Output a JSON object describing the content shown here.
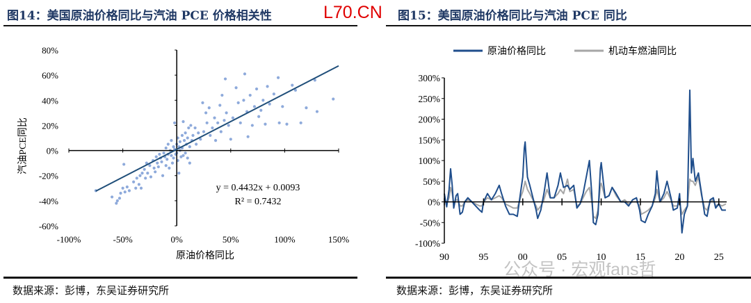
{
  "left": {
    "title": "图14：美国原油价格同比与汽油 PCE 价格相关性",
    "source": "数据来源：彭博，东吴证券研究所"
  },
  "right": {
    "title": "图15：美国原油价格同比与汽油 PCE 同比",
    "source": "数据来源：彭博，东吴证券研究所"
  },
  "stamp": "L70.CN",
  "watermark": "公众号 · 宏观fans哲",
  "chart_data": [
    {
      "type": "scatter",
      "xlabel": "原油价格同比",
      "ylabel": "汽油PCE同比",
      "xlim": [
        -100,
        150
      ],
      "ylim": [
        -60,
        80
      ],
      "xticks": [
        "-100%",
        "-50%",
        "0%",
        "50%",
        "100%",
        "150%"
      ],
      "yticks": [
        "80%",
        "60%",
        "40%",
        "20%",
        "0%",
        "-20%",
        "-40%",
        "-60%"
      ],
      "equation": "y = 0.4432x + 0.0093",
      "r2": "R² = 0.7432",
      "trend": {
        "slope": 0.4432,
        "intercept": 0.93
      },
      "color": "#8eaadb",
      "line_color": "#1f4e79",
      "points": [
        [
          -75,
          -32
        ],
        [
          -60,
          -37
        ],
        [
          -56,
          -42
        ],
        [
          -55,
          -40
        ],
        [
          -53,
          -38
        ],
        [
          -52,
          -34
        ],
        [
          -50,
          -30
        ],
        [
          -49,
          -11
        ],
        [
          -48,
          -33
        ],
        [
          -46,
          -29
        ],
        [
          -44,
          -32
        ],
        [
          -40,
          -25
        ],
        [
          -38,
          -30
        ],
        [
          -37,
          -22
        ],
        [
          -35,
          -27
        ],
        [
          -34,
          -20
        ],
        [
          -33,
          -30
        ],
        [
          -32,
          -18
        ],
        [
          -30,
          -15
        ],
        [
          -29,
          -22
        ],
        [
          -28,
          -10
        ],
        [
          -27,
          -18
        ],
        [
          -25,
          -12
        ],
        [
          -24,
          -21
        ],
        [
          -22,
          -8
        ],
        [
          -21,
          -14
        ],
        [
          -20,
          -17
        ],
        [
          -19,
          -5
        ],
        [
          -18,
          -10
        ],
        [
          -17,
          -13
        ],
        [
          -16,
          -3
        ],
        [
          -15,
          -6
        ],
        [
          -14,
          -9
        ],
        [
          -13,
          -20
        ],
        [
          -12,
          -2
        ],
        [
          -11,
          -5
        ],
        [
          -10,
          2
        ],
        [
          -10,
          -12
        ],
        [
          -9,
          -7
        ],
        [
          -8,
          5
        ],
        [
          -8,
          -3
        ],
        [
          -7,
          -14
        ],
        [
          -6,
          0
        ],
        [
          -5,
          8
        ],
        [
          -5,
          -4
        ],
        [
          -4,
          -10
        ],
        [
          -3,
          3
        ],
        [
          -3,
          -6
        ],
        [
          -2,
          22
        ],
        [
          -2,
          1
        ],
        [
          -1,
          -3
        ],
        [
          0,
          5
        ],
        [
          0,
          -2
        ],
        [
          1,
          10
        ],
        [
          1,
          -8
        ],
        [
          2,
          3
        ],
        [
          2,
          -18
        ],
        [
          3,
          0
        ],
        [
          3,
          7
        ],
        [
          4,
          -5
        ],
        [
          5,
          12
        ],
        [
          5,
          2
        ],
        [
          6,
          -4
        ],
        [
          6,
          23
        ],
        [
          7,
          8
        ],
        [
          8,
          14
        ],
        [
          8,
          -2
        ],
        [
          9,
          5
        ],
        [
          10,
          10
        ],
        [
          10,
          -6
        ],
        [
          11,
          18
        ],
        [
          12,
          3
        ],
        [
          12,
          -10
        ],
        [
          13,
          20
        ],
        [
          14,
          8
        ],
        [
          15,
          12
        ],
        [
          17,
          18
        ],
        [
          18,
          5
        ],
        [
          20,
          14
        ],
        [
          22,
          9
        ],
        [
          24,
          38
        ],
        [
          25,
          15
        ],
        [
          27,
          30
        ],
        [
          28,
          22
        ],
        [
          30,
          34
        ],
        [
          31,
          12
        ],
        [
          33,
          18
        ],
        [
          35,
          26
        ],
        [
          36,
          8
        ],
        [
          38,
          22
        ],
        [
          40,
          36
        ],
        [
          41,
          15
        ],
        [
          42,
          44
        ],
        [
          44,
          24
        ],
        [
          45,
          57
        ],
        [
          46,
          30
        ],
        [
          48,
          20
        ],
        [
          50,
          9
        ],
        [
          52,
          26
        ],
        [
          55,
          50
        ],
        [
          57,
          38
        ],
        [
          59,
          22
        ],
        [
          62,
          40
        ],
        [
          63,
          61
        ],
        [
          65,
          31
        ],
        [
          66,
          11
        ],
        [
          68,
          44
        ],
        [
          70,
          20
        ],
        [
          72,
          35
        ],
        [
          74,
          49
        ],
        [
          76,
          27
        ],
        [
          78,
          32
        ],
        [
          80,
          40
        ],
        [
          82,
          21
        ],
        [
          84,
          51
        ],
        [
          86,
          37
        ],
        [
          90,
          45
        ],
        [
          94,
          58
        ],
        [
          95,
          22
        ],
        [
          98,
          35
        ],
        [
          102,
          21
        ],
        [
          107,
          52
        ],
        [
          110,
          48
        ],
        [
          115,
          22
        ],
        [
          120,
          34
        ],
        [
          128,
          56
        ],
        [
          130,
          31
        ],
        [
          145,
          41
        ]
      ]
    },
    {
      "type": "line",
      "xlim": [
        1990,
        2026
      ],
      "ylim": [
        -100,
        300
      ],
      "xticks": [
        "90",
        "95",
        "00",
        "05",
        "10",
        "15",
        "20",
        "25"
      ],
      "yticks": [
        "300%",
        "250%",
        "200%",
        "150%",
        "100%",
        "50%",
        "0%",
        "-50%",
        "-100%"
      ],
      "series": [
        {
          "name": "原油价格同比",
          "color": "#1f4e8c"
        },
        {
          "name": "机动车燃油同比",
          "color": "#a6a6a6"
        }
      ],
      "points": [
        [
          1990.0,
          20,
          10
        ],
        [
          1990.3,
          -12,
          -5
        ],
        [
          1990.6,
          30,
          10
        ],
        [
          1990.8,
          80,
          35
        ],
        [
          1991.0,
          40,
          20
        ],
        [
          1991.2,
          -15,
          -5
        ],
        [
          1991.5,
          15,
          5
        ],
        [
          1991.7,
          20,
          5
        ],
        [
          1992.0,
          -30,
          -10
        ],
        [
          1992.3,
          -25,
          -10
        ],
        [
          1992.6,
          0,
          0
        ],
        [
          1993.0,
          10,
          5
        ],
        [
          1993.5,
          0,
          0
        ],
        [
          1994.0,
          -10,
          -5
        ],
        [
          1994.5,
          -20,
          -10
        ],
        [
          1994.8,
          -25,
          -10
        ],
        [
          1995.0,
          0,
          0
        ],
        [
          1995.5,
          20,
          10
        ],
        [
          1996.0,
          5,
          5
        ],
        [
          1996.5,
          20,
          10
        ],
        [
          1997.0,
          40,
          15
        ],
        [
          1997.3,
          20,
          10
        ],
        [
          1997.8,
          -10,
          -5
        ],
        [
          1998.3,
          -30,
          -10
        ],
        [
          1998.8,
          -30,
          -15
        ],
        [
          1999.3,
          -35,
          -15
        ],
        [
          1999.7,
          20,
          10
        ],
        [
          2000.0,
          60,
          25
        ],
        [
          2000.2,
          130,
          40
        ],
        [
          2000.3,
          145,
          50
        ],
        [
          2000.6,
          60,
          30
        ],
        [
          2000.9,
          40,
          20
        ],
        [
          2001.3,
          10,
          5
        ],
        [
          2001.7,
          -20,
          -10
        ],
        [
          2001.9,
          -40,
          -20
        ],
        [
          2002.3,
          -20,
          -10
        ],
        [
          2002.7,
          20,
          5
        ],
        [
          2003.1,
          70,
          30
        ],
        [
          2003.5,
          10,
          10
        ],
        [
          2004.0,
          10,
          10
        ],
        [
          2004.5,
          40,
          20
        ],
        [
          2004.8,
          70,
          30
        ],
        [
          2005.2,
          35,
          20
        ],
        [
          2005.7,
          40,
          55
        ],
        [
          2006.0,
          30,
          25
        ],
        [
          2006.5,
          40,
          30
        ],
        [
          2006.9,
          -15,
          -10
        ],
        [
          2007.3,
          -5,
          -5
        ],
        [
          2007.7,
          20,
          10
        ],
        [
          2008.1,
          60,
          25
        ],
        [
          2008.5,
          100,
          35
        ],
        [
          2008.8,
          20,
          0
        ],
        [
          2009.0,
          -50,
          -35
        ],
        [
          2009.3,
          -55,
          -40
        ],
        [
          2009.6,
          -30,
          -20
        ],
        [
          2009.9,
          80,
          40
        ],
        [
          2010.0,
          95,
          45
        ],
        [
          2010.5,
          10,
          10
        ],
        [
          2011.0,
          15,
          15
        ],
        [
          2011.4,
          35,
          35
        ],
        [
          2011.9,
          20,
          15
        ],
        [
          2012.5,
          0,
          0
        ],
        [
          2013.0,
          0,
          5
        ],
        [
          2013.5,
          -10,
          -5
        ],
        [
          2014.0,
          5,
          0
        ],
        [
          2014.5,
          10,
          0
        ],
        [
          2014.9,
          -20,
          -10
        ],
        [
          2015.1,
          -45,
          -30
        ],
        [
          2015.6,
          -50,
          -25
        ],
        [
          2016.0,
          -30,
          -20
        ],
        [
          2016.5,
          -10,
          -10
        ],
        [
          2016.9,
          20,
          10
        ],
        [
          2017.1,
          75,
          30
        ],
        [
          2017.5,
          0,
          0
        ],
        [
          2018.0,
          20,
          10
        ],
        [
          2018.4,
          50,
          25
        ],
        [
          2018.9,
          10,
          5
        ],
        [
          2019.2,
          -20,
          -10
        ],
        [
          2019.7,
          -15,
          -10
        ],
        [
          2020.0,
          20,
          0
        ],
        [
          2020.3,
          -75,
          -30
        ],
        [
          2020.6,
          -30,
          -20
        ],
        [
          2021.0,
          -10,
          -10
        ],
        [
          2021.3,
          270,
          55
        ],
        [
          2021.5,
          70,
          50
        ],
        [
          2021.7,
          105,
          50
        ],
        [
          2022.0,
          50,
          40
        ],
        [
          2022.4,
          70,
          60
        ],
        [
          2022.8,
          20,
          15
        ],
        [
          2023.2,
          -30,
          -15
        ],
        [
          2023.5,
          -35,
          -20
        ],
        [
          2023.9,
          5,
          0
        ],
        [
          2024.3,
          10,
          5
        ],
        [
          2024.6,
          -15,
          -10
        ],
        [
          2025.0,
          -5,
          -5
        ],
        [
          2025.4,
          -20,
          -10
        ],
        [
          2025.9,
          -20,
          -5
        ]
      ]
    }
  ]
}
